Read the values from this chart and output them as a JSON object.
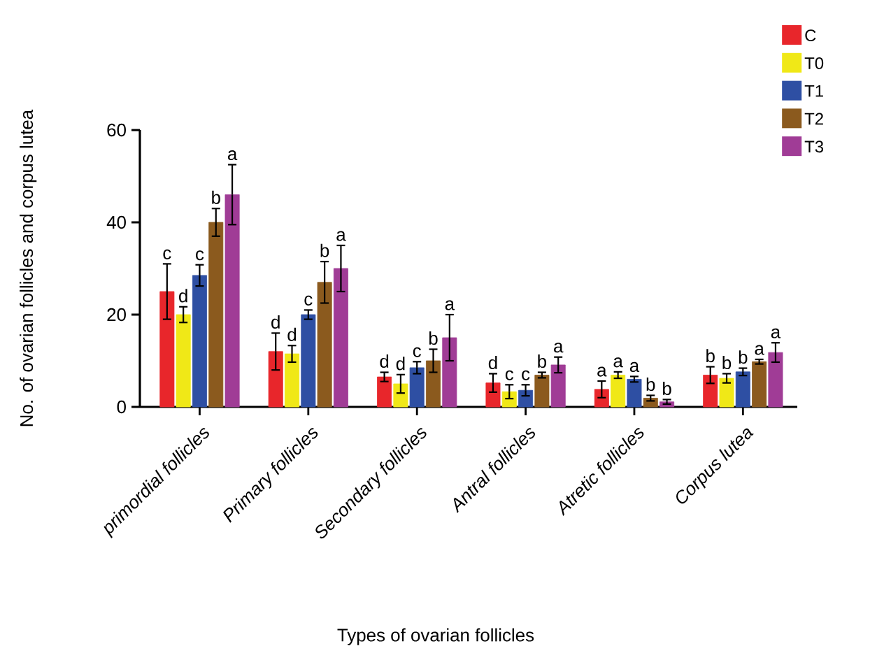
{
  "chart_data": {
    "type": "bar",
    "xlabel": "Types of ovarian follicles",
    "ylabel": "No. of ovarian follicles and corpus lutea",
    "categories": [
      "primordial follicles",
      "Primary follicles",
      "Secondary follicles",
      "Antral follicles",
      "Atretic follicles",
      "Corpus lutea"
    ],
    "series": [
      {
        "name": "C",
        "color": "#e8262b",
        "values": [
          25,
          12,
          6.5,
          5.2,
          3.8,
          6.9
        ],
        "errors": [
          6,
          4,
          1,
          2,
          1.8,
          1.8
        ],
        "value_labels": [
          "c",
          "d",
          "d",
          "d",
          "a",
          "b"
        ]
      },
      {
        "name": "T0",
        "color": "#f0e817",
        "values": [
          20,
          11.5,
          5,
          3.3,
          6.9,
          6.2
        ],
        "errors": [
          1.7,
          1.8,
          2,
          1.5,
          0.7,
          1
        ],
        "value_labels": [
          "d",
          "d",
          "d",
          "c",
          "a",
          "b"
        ]
      },
      {
        "name": "T1",
        "color": "#2e4fa3",
        "values": [
          28.5,
          20,
          8.5,
          3.6,
          6,
          7.6
        ],
        "errors": [
          2.3,
          1,
          1.3,
          1.2,
          0.6,
          0.8
        ],
        "value_labels": [
          "c",
          "c",
          "c",
          "c",
          "a",
          "b"
        ]
      },
      {
        "name": "T2",
        "color": "#8b5a1e",
        "values": [
          40,
          27,
          10,
          6.9,
          1.9,
          9.8
        ],
        "errors": [
          3,
          4.5,
          2.5,
          0.6,
          0.6,
          0.5
        ],
        "value_labels": [
          "b",
          "b",
          "b",
          "b",
          "b",
          "a"
        ]
      },
      {
        "name": "T3",
        "color": "#a03c96",
        "values": [
          46,
          30,
          15,
          9.1,
          1.1,
          11.8
        ],
        "errors": [
          6.5,
          5,
          5,
          1.7,
          0.5,
          2.1
        ],
        "value_labels": [
          "a",
          "a",
          "a",
          "a",
          "b",
          "a"
        ]
      }
    ],
    "ylim": [
      0,
      60
    ],
    "yticks": [
      0,
      20,
      40,
      60
    ],
    "legend": "top right"
  }
}
